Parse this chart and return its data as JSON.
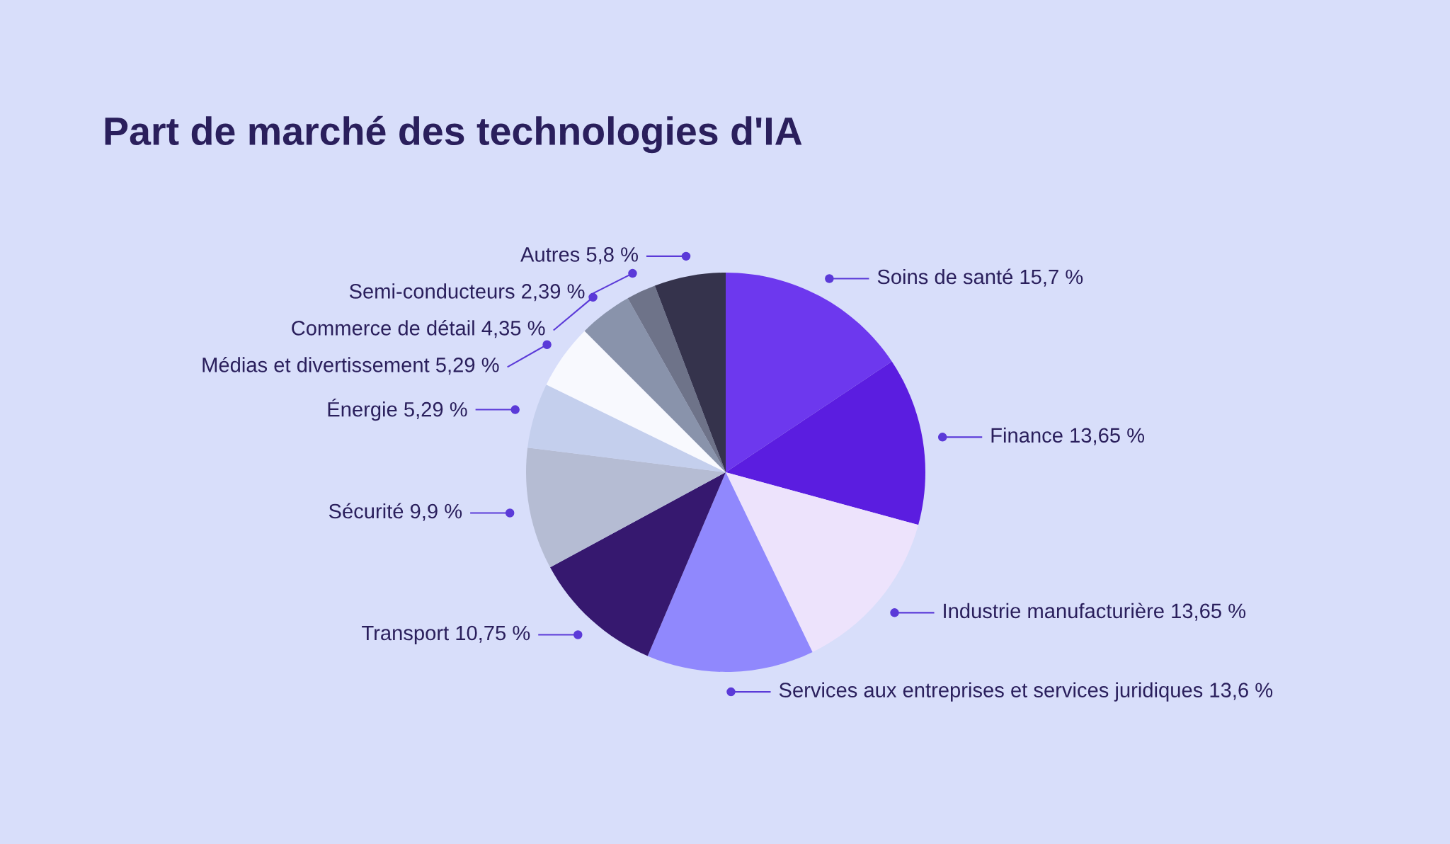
{
  "chart_data": {
    "type": "pie",
    "title": "Part de marché des technologies d'IA",
    "categories": [
      "Soins de santé",
      "Finance",
      "Industrie manufacturière",
      "Services aux entreprises et services juridiques",
      "Transport",
      "Sécurité",
      "Énergie",
      "Médias et divertissement",
      "Commerce de détail",
      "Semi-conducteurs",
      "Autres"
    ],
    "values": [
      15.7,
      13.65,
      13.65,
      13.6,
      10.75,
      9.9,
      5.29,
      5.29,
      4.35,
      2.39,
      5.8
    ],
    "value_labels": [
      "15,7 %",
      "13,65 %",
      "13,65 %",
      "13,6 %",
      "10,75 %",
      "9,9 %",
      "5,29 %",
      "5,29 %",
      "4,35 %",
      "2,39 %",
      "5,8 %"
    ],
    "colors": [
      "#6d38ee",
      "#5b1de0",
      "#ede3fc",
      "#9088fd",
      "#36186f",
      "#b5bcd3",
      "#c4cfed",
      "#f8f9fe",
      "#8993ab",
      "#6e7389",
      "#35334c"
    ]
  }
}
